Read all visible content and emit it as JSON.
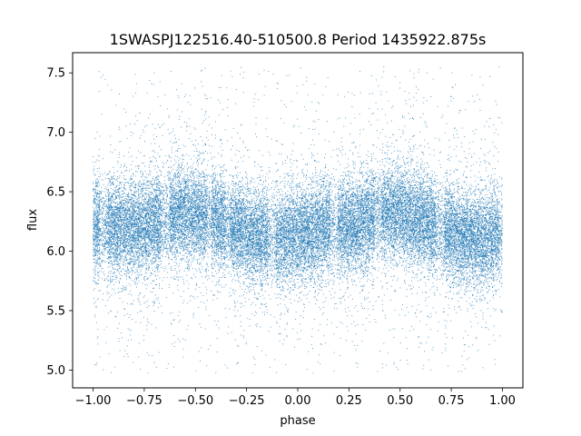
{
  "chart_data": {
    "type": "scatter",
    "title": "1SWASPJ122516.40-510500.8 Period 1435922.875s",
    "xlabel": "phase",
    "ylabel": "flux",
    "xlim": [
      -1.1,
      1.1
    ],
    "ylim": [
      4.85,
      7.67
    ],
    "x_ticks": [
      -1.0,
      -0.75,
      -0.5,
      -0.25,
      0.0,
      0.25,
      0.5,
      0.75,
      1.0
    ],
    "x_tick_labels": [
      "−1.00",
      "−0.75",
      "−0.50",
      "−0.25",
      "0.00",
      "0.25",
      "0.50",
      "0.75",
      "1.00"
    ],
    "y_ticks": [
      5.0,
      5.5,
      6.0,
      6.5,
      7.0,
      7.5
    ],
    "y_tick_labels": [
      "5.0",
      "5.5",
      "6.0",
      "6.5",
      "7.0",
      "7.5"
    ],
    "grid": false,
    "legend": "none",
    "marker_color": "#1f77b4",
    "phase_range": [
      -1.0,
      1.0
    ],
    "baseline_profile": {
      "phase": [
        -1.0,
        -0.9,
        -0.8,
        -0.7,
        -0.6,
        -0.5,
        -0.4,
        -0.3,
        -0.2,
        -0.1,
        0.0,
        0.1,
        0.2,
        0.3,
        0.4,
        0.5,
        0.6,
        0.7,
        0.8,
        0.9,
        1.0
      ],
      "flux_median": [
        6.2,
        6.19,
        6.2,
        6.23,
        6.3,
        6.32,
        6.27,
        6.18,
        6.12,
        6.1,
        6.15,
        6.19,
        6.2,
        6.23,
        6.3,
        6.32,
        6.27,
        6.18,
        6.12,
        6.1,
        6.15
      ]
    },
    "scatter_sigma": 0.2,
    "outlier_range": [
      4.97,
      7.55
    ],
    "point_count": 30000
  }
}
